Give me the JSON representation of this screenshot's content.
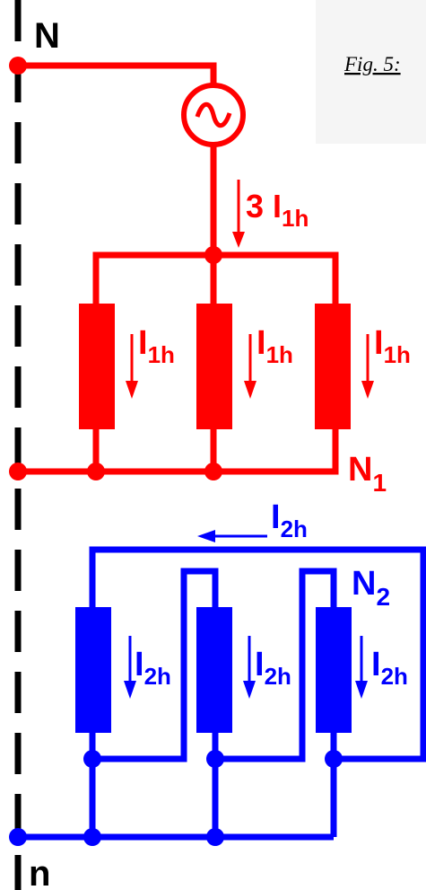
{
  "caption": "Fig. 5:",
  "labels": {
    "neutral_top": "N",
    "neutral_bottom": "n",
    "source_current": "3 I",
    "source_current_sub": "1h",
    "load_current": "I",
    "load_current_sub": "1h",
    "node_1": "N",
    "node_1_sub": "1",
    "node_2": "N",
    "node_2_sub": "2",
    "return_current": "I",
    "return_current_sub": "2h"
  },
  "colors": {
    "primary": "#ff0000",
    "secondary": "#0000ff",
    "neutral_line": "#000000",
    "caption_bg": "#f5f5f5"
  }
}
